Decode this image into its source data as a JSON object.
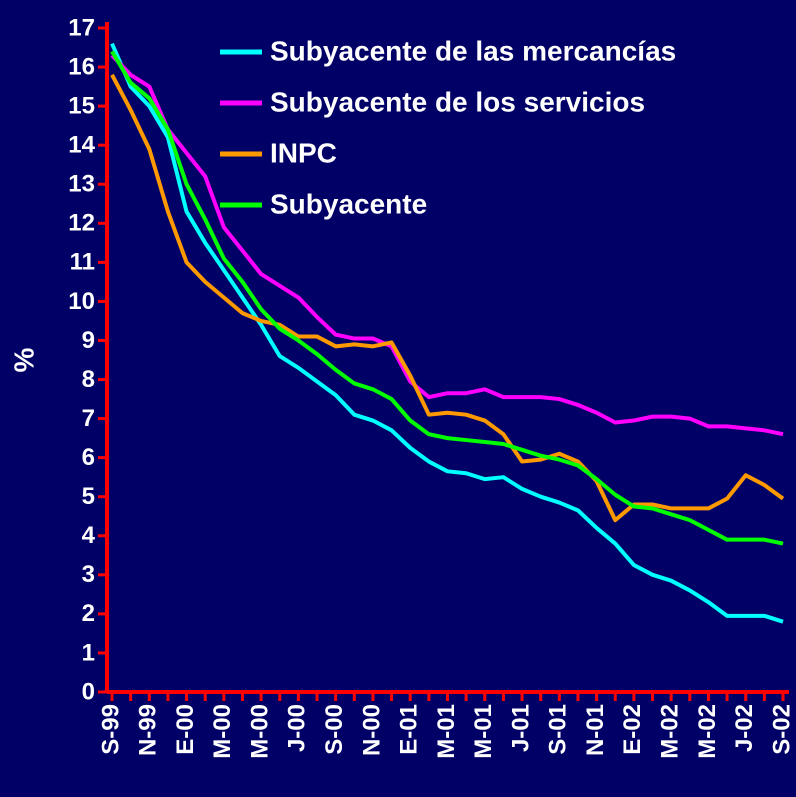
{
  "chart_data": {
    "type": "line",
    "y_label": "%",
    "categories": [
      "S-99",
      null,
      "N-99",
      null,
      "E-00",
      null,
      "M-00",
      null,
      "M-00",
      null,
      "J-00",
      null,
      "S-00",
      null,
      "N-00",
      null,
      "E-01",
      null,
      "M-01",
      null,
      "M-01",
      null,
      "J-01",
      null,
      "S-01",
      null,
      "N-01",
      null,
      "E-02",
      null,
      "M-02",
      null,
      "M-02",
      null,
      "J-02",
      null,
      "S-02"
    ],
    "series": [
      {
        "name": "Subyacente de las mercancías",
        "color": "#00ffff",
        "values": [
          16.6,
          15.5,
          15.0,
          14.2,
          12.3,
          11.5,
          10.8,
          10.1,
          9.4,
          8.6,
          8.3,
          7.95,
          7.6,
          7.1,
          6.95,
          6.7,
          6.25,
          5.9,
          5.65,
          5.6,
          5.45,
          5.5,
          5.2,
          5.0,
          4.85,
          4.65,
          4.2,
          3.8,
          3.25,
          3.0,
          2.85,
          2.6,
          2.3,
          1.95,
          1.95,
          1.95,
          1.8
        ]
      },
      {
        "name": "Subyacente de los servicios",
        "color": "#ff00ff",
        "values": [
          16.3,
          15.8,
          15.5,
          14.4,
          13.8,
          13.2,
          11.9,
          11.3,
          10.7,
          10.4,
          10.1,
          9.6,
          9.15,
          9.05,
          9.05,
          8.85,
          7.95,
          7.55,
          7.65,
          7.65,
          7.75,
          7.55,
          7.55,
          7.55,
          7.5,
          7.35,
          7.15,
          6.9,
          6.95,
          7.05,
          7.05,
          7.0,
          6.8,
          6.8,
          6.75,
          6.7,
          6.6
        ]
      },
      {
        "name": "INPC",
        "color": "#ff9900",
        "values": [
          15.8,
          14.9,
          13.9,
          12.3,
          11.0,
          10.5,
          10.1,
          9.7,
          9.5,
          9.4,
          9.1,
          9.1,
          8.85,
          8.9,
          8.85,
          8.95,
          8.1,
          7.1,
          7.15,
          7.1,
          6.95,
          6.6,
          5.9,
          5.95,
          6.1,
          5.9,
          5.4,
          4.4,
          4.8,
          4.8,
          4.7,
          4.7,
          4.7,
          4.95,
          5.55,
          5.3,
          4.95
        ]
      },
      {
        "name": "Subyacente",
        "color": "#00ff00",
        "values": [
          16.4,
          15.6,
          15.2,
          14.4,
          13.0,
          12.1,
          11.1,
          10.5,
          9.8,
          9.3,
          9.0,
          8.65,
          8.25,
          7.9,
          7.75,
          7.5,
          6.95,
          6.6,
          6.5,
          6.45,
          6.4,
          6.35,
          6.2,
          6.05,
          5.95,
          5.8,
          5.45,
          5.05,
          4.75,
          4.7,
          4.55,
          4.4,
          4.15,
          3.9,
          3.9,
          3.9,
          3.8
        ]
      }
    ],
    "ylim": [
      0,
      17
    ],
    "yticks": [
      0,
      1,
      2,
      3,
      4,
      5,
      6,
      7,
      8,
      9,
      10,
      11,
      12,
      13,
      14,
      15,
      16,
      17
    ],
    "axis_color": "#ff0000",
    "background": "#000066"
  }
}
